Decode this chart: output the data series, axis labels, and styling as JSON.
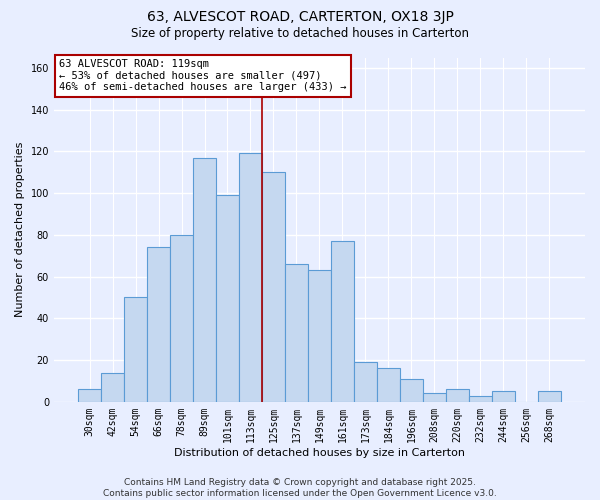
{
  "title": "63, ALVESCOT ROAD, CARTERTON, OX18 3JP",
  "subtitle": "Size of property relative to detached houses in Carterton",
  "xlabel": "Distribution of detached houses by size in Carterton",
  "ylabel": "Number of detached properties",
  "bar_labels": [
    "30sqm",
    "42sqm",
    "54sqm",
    "66sqm",
    "78sqm",
    "89sqm",
    "101sqm",
    "113sqm",
    "125sqm",
    "137sqm",
    "149sqm",
    "161sqm",
    "173sqm",
    "184sqm",
    "196sqm",
    "208sqm",
    "220sqm",
    "232sqm",
    "244sqm",
    "256sqm",
    "268sqm"
  ],
  "bar_heights": [
    6,
    14,
    50,
    74,
    80,
    117,
    99,
    119,
    110,
    66,
    63,
    77,
    19,
    16,
    11,
    4,
    6,
    3,
    5,
    0,
    5
  ],
  "bar_color": "#c5d8f0",
  "bar_edge_color": "#5b9bd5",
  "bar_edge_width": 0.8,
  "vline_x_index": 7.5,
  "vline_color": "#aa0000",
  "annotation_box_text": "63 ALVESCOT ROAD: 119sqm\n← 53% of detached houses are smaller (497)\n46% of semi-detached houses are larger (433) →",
  "annotation_font_size": 7.5,
  "ylim": [
    0,
    165
  ],
  "yticks": [
    0,
    20,
    40,
    60,
    80,
    100,
    120,
    140,
    160
  ],
  "background_color": "#e8eeff",
  "grid_color": "#ffffff",
  "title_fontsize": 10,
  "subtitle_fontsize": 8.5,
  "xlabel_fontsize": 8,
  "ylabel_fontsize": 8,
  "tick_fontsize": 7,
  "footer_text": "Contains HM Land Registry data © Crown copyright and database right 2025.\nContains public sector information licensed under the Open Government Licence v3.0.",
  "footer_fontsize": 6.5
}
